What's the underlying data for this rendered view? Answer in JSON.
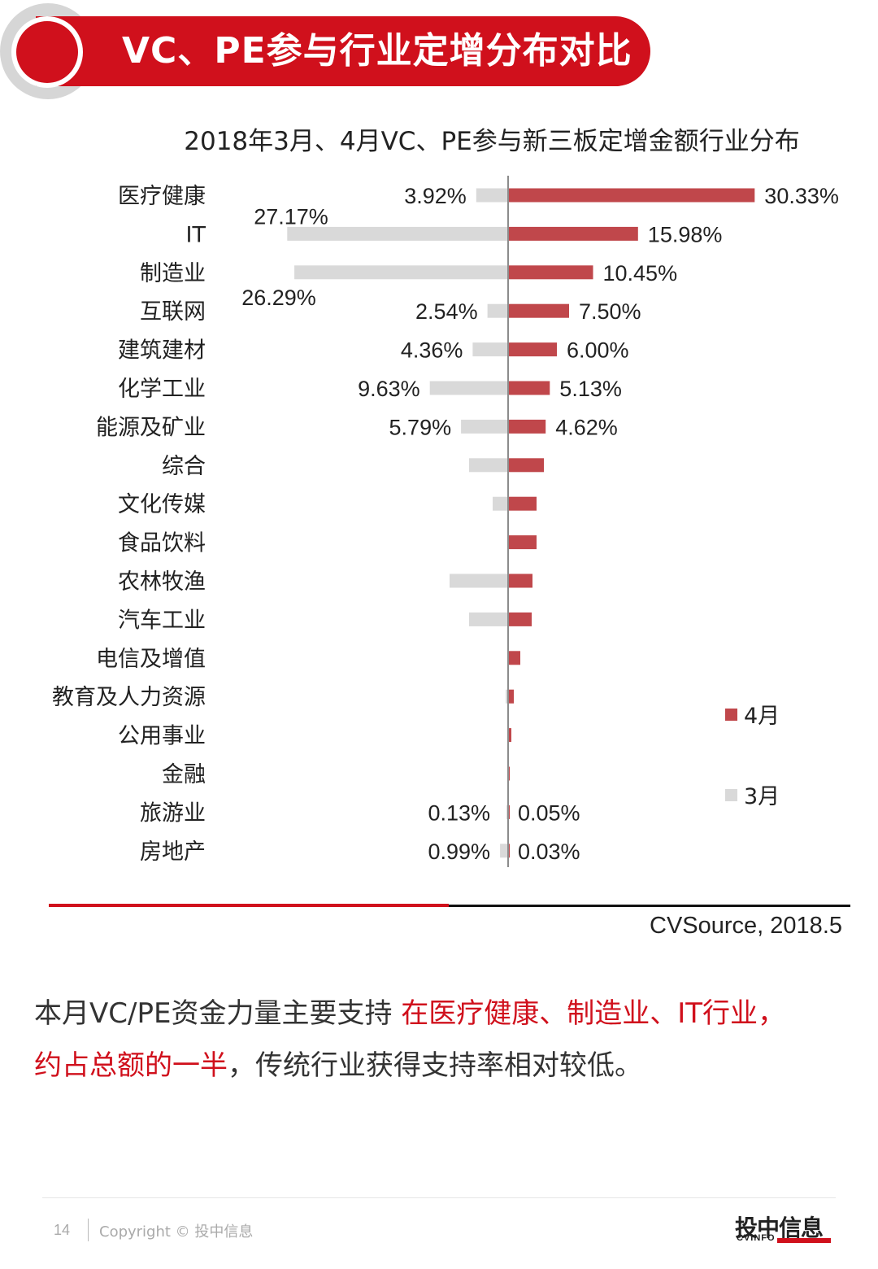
{
  "header": {
    "title": "VC、PE参与行业定增分布对比"
  },
  "chart_data": {
    "type": "bar",
    "orientation": "horizontal-diverging",
    "title": "2018年3月、4月VC、PE参与新三板定增金额行业分布",
    "categories": [
      "医疗健康",
      "IT",
      "制造业",
      "互联网",
      "建筑建材",
      "化学工业",
      "能源及矿业",
      "综合",
      "文化传媒",
      "食品饮料",
      "农林牧渔",
      "汽车工业",
      "电信及增值",
      "教育及人力资源",
      "公用事业",
      "金融",
      "旅游业",
      "房地产"
    ],
    "series": [
      {
        "name": "4月",
        "color": "#c0474b",
        "side": "right",
        "values": [
          30.33,
          15.98,
          10.45,
          7.5,
          6.0,
          5.13,
          4.62,
          4.4,
          3.5,
          3.5,
          3.0,
          2.9,
          1.5,
          0.7,
          0.4,
          0.2,
          0.05,
          0.03
        ],
        "labels": [
          "30.33%",
          "15.98%",
          "10.45%",
          "7.50%",
          "6.00%",
          "5.13%",
          "4.62%",
          "",
          "",
          "",
          "",
          "",
          "",
          "",
          "",
          "",
          "0.05%",
          "0.03%"
        ]
      },
      {
        "name": "3月",
        "color": "#d9d9d9",
        "side": "left",
        "values": [
          3.92,
          27.17,
          26.29,
          2.54,
          4.36,
          9.63,
          5.79,
          4.8,
          1.9,
          0,
          7.2,
          4.8,
          0,
          0.3,
          0,
          0,
          0.13,
          0.99
        ],
        "labels": [
          "3.92%",
          "27.17%",
          "26.29%",
          "2.54%",
          "4.36%",
          "9.63%",
          "5.79%",
          "",
          "",
          "",
          "",
          "",
          "",
          "",
          "",
          "",
          "0.13%",
          "0.99%"
        ]
      }
    ],
    "legend_position": "right"
  },
  "source": "CVSource, 2018.5",
  "summary": {
    "text1": "本月VC/PE资金力量主要支持 ",
    "highlight1": "在医疗健康、制造业、IT行业，",
    "highlight2": "约占总额的一半",
    "text2": "，传统行业获得支持率相对较低。"
  },
  "footer": {
    "page": "14",
    "copyright": "Copyright © 投中信息",
    "logo_cn": "投中信息",
    "logo_en": "CVINFO"
  }
}
